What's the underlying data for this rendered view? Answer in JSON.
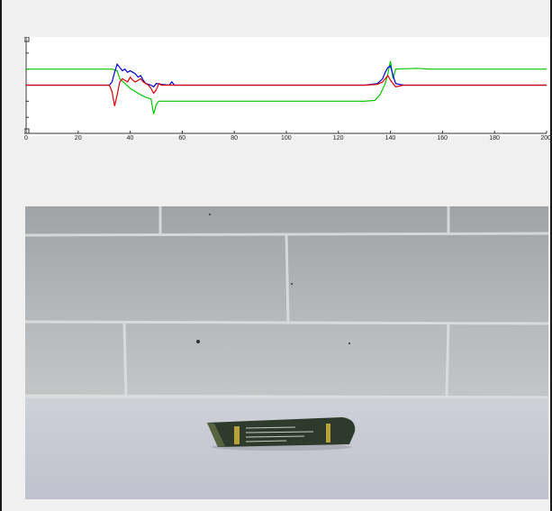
{
  "chart_data": {
    "type": "line",
    "title": "",
    "xlabel": "",
    "ylabel": "",
    "xlim": [
      0,
      200
    ],
    "ylim": [
      -3,
      3
    ],
    "xticks": [
      "0",
      "20",
      "40",
      "60",
      "80",
      "100",
      "120",
      "140",
      "160",
      "180",
      "200"
    ],
    "yticks": [
      "3",
      "2",
      "1",
      "0",
      "-1",
      "-2",
      "-3"
    ],
    "series": [
      {
        "color": "#00c800",
        "x": [
          0,
          33,
          35,
          36,
          38,
          40,
          42,
          44,
          46,
          48,
          49,
          50,
          51,
          52,
          55,
          60,
          80,
          100,
          120,
          130,
          134,
          136,
          138,
          139,
          140,
          141,
          142,
          150,
          155,
          160,
          180,
          200
        ],
        "y": [
          1,
          1,
          0.9,
          0.4,
          0.1,
          -0.2,
          -0.4,
          -0.6,
          -0.75,
          -0.85,
          -1.8,
          -1.2,
          -1.0,
          -1.0,
          -1.0,
          -1.0,
          -1.0,
          -1.0,
          -1.0,
          -1.0,
          -0.95,
          -0.6,
          0.1,
          0.7,
          1.5,
          0.4,
          1.0,
          1.05,
          1.0,
          1.0,
          1.0,
          1.0
        ]
      },
      {
        "color": "#0000dc",
        "x": [
          0,
          32,
          33,
          34,
          35,
          36,
          37,
          38,
          39,
          40,
          41,
          42,
          43,
          44,
          45,
          46,
          47,
          48,
          49,
          50,
          52,
          55,
          56,
          57,
          60,
          80,
          100,
          130,
          135,
          137,
          138,
          139,
          140,
          141,
          142,
          145,
          150,
          160,
          180,
          200
        ],
        "y": [
          0,
          0,
          0.2,
          0.8,
          1.3,
          1.1,
          0.9,
          1.0,
          0.8,
          0.9,
          0.8,
          0.7,
          0.5,
          0.6,
          0.3,
          0.1,
          0.05,
          0.0,
          -0.1,
          0.1,
          0.05,
          0.0,
          0.2,
          0.0,
          0.0,
          0.0,
          0.0,
          0.0,
          0.1,
          0.4,
          0.8,
          1.1,
          1.2,
          0.6,
          0.1,
          0.0,
          0.0,
          0.0,
          0.0,
          0.0
        ]
      },
      {
        "color": "#dc0000",
        "x": [
          0,
          32,
          33,
          34,
          35,
          36,
          37,
          38,
          39,
          40,
          41,
          42,
          43,
          44,
          45,
          46,
          47,
          48,
          49,
          50,
          51,
          52,
          55,
          60,
          80,
          100,
          130,
          135,
          137,
          138,
          139,
          140,
          141,
          142,
          145,
          150,
          160,
          180,
          200
        ],
        "y": [
          0,
          0,
          -0.4,
          -1.3,
          -0.6,
          0.2,
          0.4,
          0.3,
          0.2,
          0.5,
          0.3,
          0.2,
          0.3,
          0.4,
          0.2,
          0.1,
          0.0,
          -0.2,
          -0.5,
          -0.3,
          0.1,
          0.0,
          0.0,
          0.0,
          0.0,
          0.0,
          0.0,
          0.05,
          0.2,
          0.4,
          0.6,
          0.3,
          0.1,
          -0.1,
          0.0,
          0.0,
          0.0,
          0.0,
          0.0
        ]
      }
    ]
  },
  "video": {
    "wall_color": "#aeb2b5",
    "floor_color": "#c8cad4",
    "robot_color": "#2f3a2a"
  }
}
